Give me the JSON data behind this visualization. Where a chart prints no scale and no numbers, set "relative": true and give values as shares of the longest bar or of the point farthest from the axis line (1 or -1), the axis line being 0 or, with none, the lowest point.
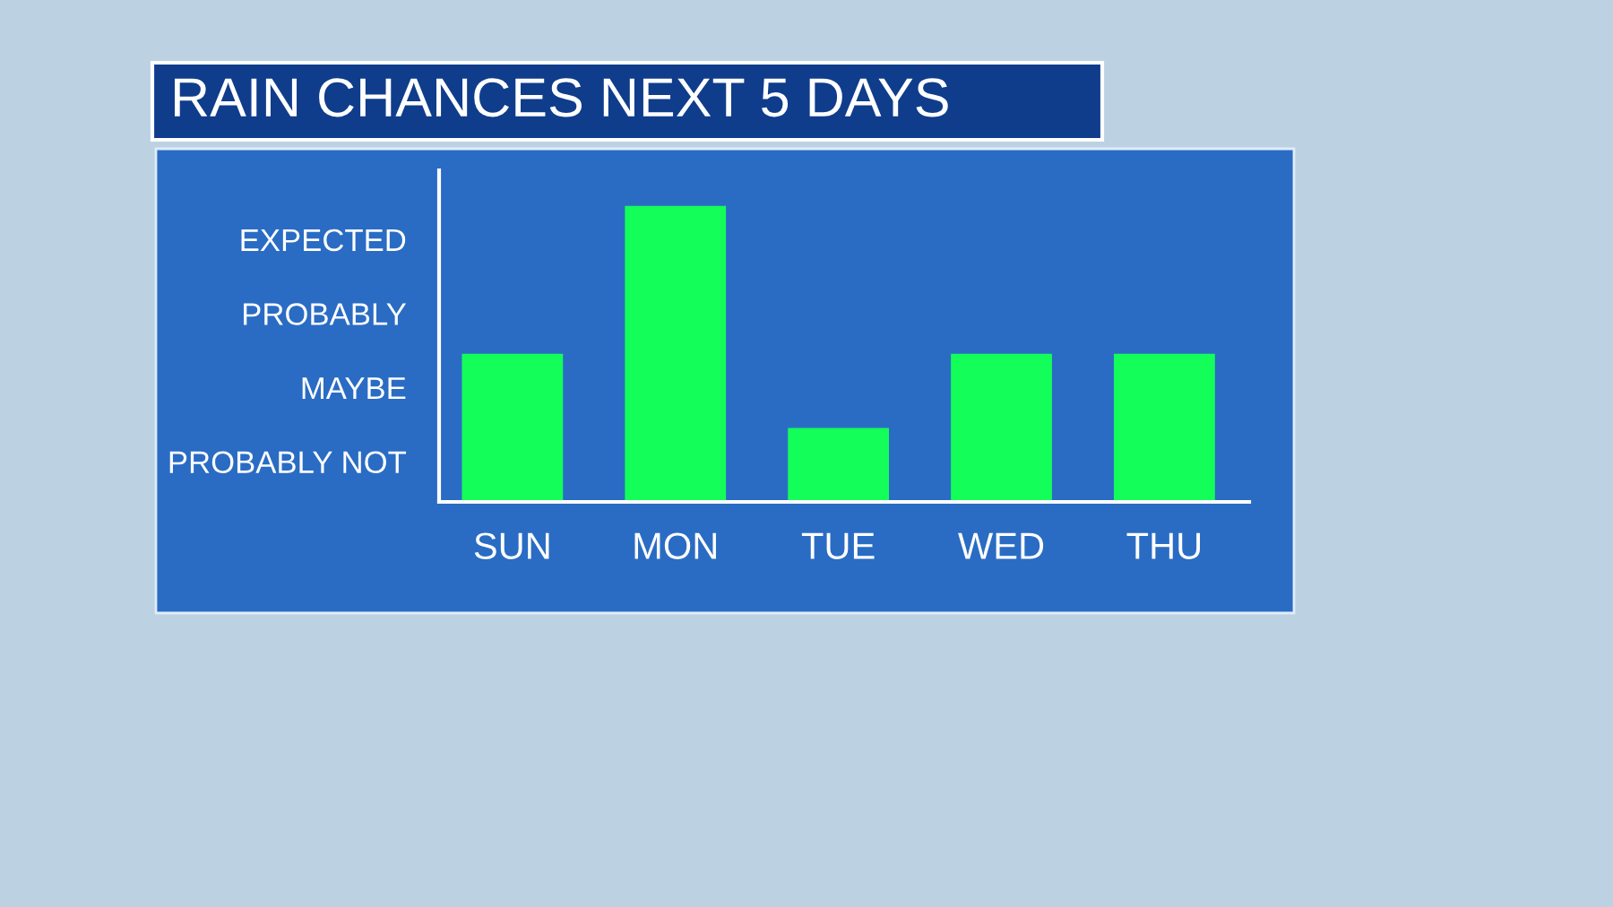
{
  "chart_data": {
    "type": "bar",
    "title": "RAIN CHANCES NEXT 5 DAYS",
    "categories": [
      "SUN",
      "MON",
      "TUE",
      "WED",
      "THU"
    ],
    "values": [
      0.5,
      1,
      0.25,
      0.5,
      0.5
    ],
    "relative": true,
    "color": "#14fe5a",
    "annotations": [
      "PROBABLY NOT",
      "MAYBE",
      "PROBABLY",
      "EXPECTED"
    ]
  }
}
